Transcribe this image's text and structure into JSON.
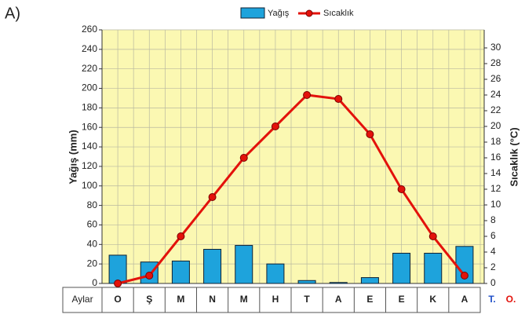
{
  "chart_data": {
    "type": "bar_line",
    "panel_label": "A)",
    "categories": [
      "O",
      "Ş",
      "M",
      "N",
      "M",
      "H",
      "T",
      "A",
      "E",
      "E",
      "K",
      "A"
    ],
    "x_label": "Aylar",
    "footer_labels": [
      "T.",
      "O."
    ],
    "y_label": "Yağış (mm)",
    "y2_label": "Sıcaklık (°C)",
    "series": [
      {
        "name": "Yağış",
        "color": "#1ea3dc",
        "values": [
          29,
          22,
          23,
          35,
          39,
          20,
          3,
          1,
          6,
          31,
          31,
          38
        ]
      },
      {
        "name": "Sıcaklık",
        "color": "#e3120b",
        "axis": "y2",
        "values": [
          0,
          1,
          6,
          11,
          16,
          20,
          24,
          23.5,
          19,
          12,
          6,
          1
        ]
      }
    ],
    "ylim": [
      0,
      260
    ],
    "yticks": [
      0,
      20,
      40,
      60,
      80,
      100,
      120,
      140,
      160,
      180,
      200,
      220,
      240,
      260
    ],
    "y2lim": [
      0,
      32.3
    ],
    "y2ticks": [
      0,
      2,
      4,
      6,
      8,
      10,
      12,
      14,
      16,
      18,
      20,
      22,
      24,
      26,
      28,
      30
    ],
    "grid": true,
    "legend": "top"
  }
}
